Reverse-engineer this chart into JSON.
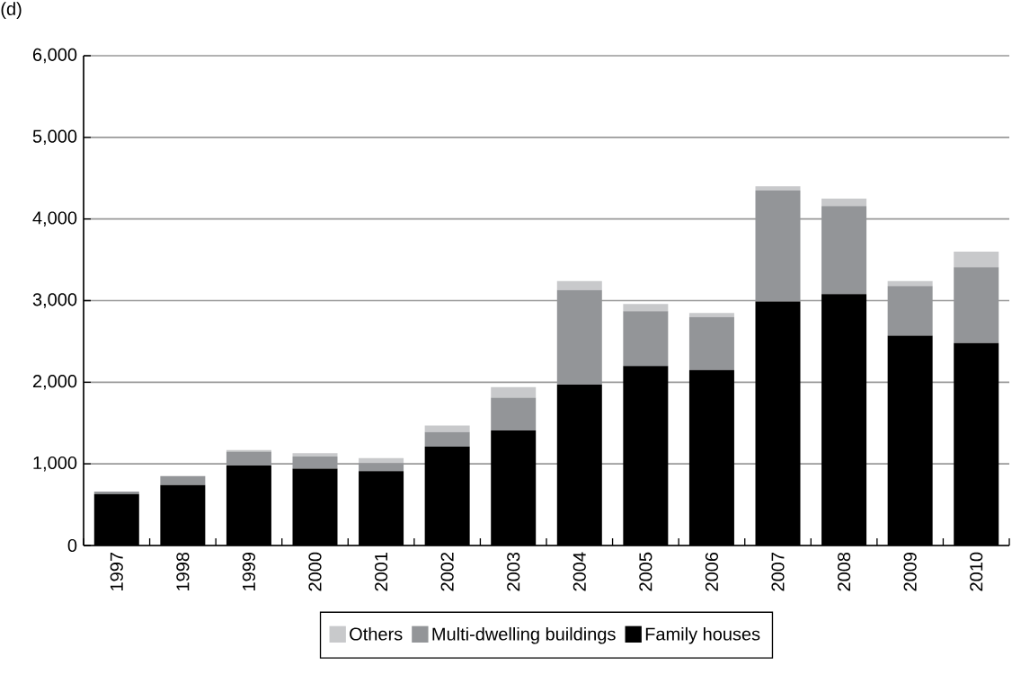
{
  "chart_data": {
    "type": "bar",
    "title": "(d)",
    "stacked": true,
    "categories": [
      "1997",
      "1998",
      "1999",
      "2000",
      "2001",
      "2002",
      "2003",
      "2004",
      "2005",
      "2006",
      "2007",
      "2008",
      "2009",
      "2010"
    ],
    "series": [
      {
        "name": "Family houses",
        "color": "#000000",
        "values": [
          630,
          740,
          980,
          940,
          910,
          1210,
          1410,
          1970,
          2200,
          2150,
          2990,
          3080,
          2570,
          2480
        ]
      },
      {
        "name": "Multi-dwelling buildings",
        "color": "#939598",
        "values": [
          30,
          110,
          170,
          150,
          100,
          180,
          400,
          1160,
          670,
          650,
          1360,
          1080,
          610,
          930
        ]
      },
      {
        "name": "Others",
        "color": "#c8c9cb",
        "values": [
          null,
          0,
          20,
          40,
          60,
          80,
          130,
          110,
          90,
          50,
          50,
          90,
          60,
          190
        ]
      }
    ],
    "ylim": [
      0,
      6000
    ],
    "yticks": [
      {
        "value": 0,
        "label": "0"
      },
      {
        "value": 1000,
        "label": "1,000"
      },
      {
        "value": 2000,
        "label": "2,000"
      },
      {
        "value": 3000,
        "label": "3,000"
      },
      {
        "value": 4000,
        "label": "4,000"
      },
      {
        "value": 5000,
        "label": "5,000"
      },
      {
        "value": 6000,
        "label": "6,000"
      }
    ],
    "grid": "y",
    "legend": "bottom"
  }
}
